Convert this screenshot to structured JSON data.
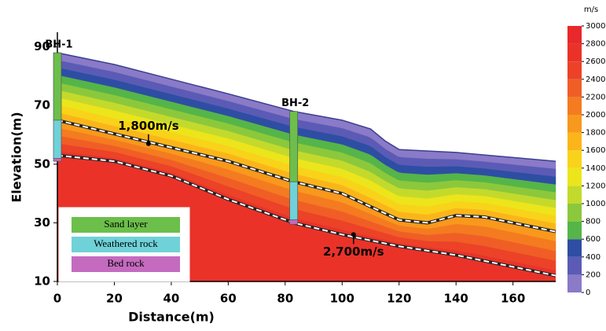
{
  "chart_data": {
    "type": "profile",
    "x_label": "Distance(m)",
    "y_label": "Elevation(m)",
    "xlim": [
      0,
      175
    ],
    "ylim": [
      10,
      95
    ],
    "xticks": [
      0,
      20,
      40,
      60,
      80,
      100,
      120,
      140,
      160
    ],
    "yticks": [
      10,
      30,
      50,
      70,
      90
    ],
    "surface": {
      "x": [
        0,
        20,
        40,
        60,
        83,
        100,
        110,
        115,
        120,
        140,
        175
      ],
      "y": [
        88,
        84,
        79,
        74,
        68,
        65,
        62,
        58,
        55,
        54,
        51
      ]
    },
    "interfaces": [
      {
        "velocity": 1800,
        "x": [
          0,
          30,
          60,
          83,
          100,
          120,
          130,
          140,
          150,
          175
        ],
        "y": [
          65,
          58,
          51,
          44,
          40,
          31,
          30,
          32.5,
          32,
          27
        ]
      },
      {
        "velocity": 2700,
        "x": [
          0,
          20,
          40,
          60,
          83,
          100,
          120,
          140,
          160,
          175
        ],
        "y": [
          53,
          51,
          46,
          38,
          30,
          26,
          22,
          19,
          15,
          12
        ]
      }
    ],
    "annotations": [
      {
        "text": "1,800m/s",
        "x": 32,
        "y": 57
      },
      {
        "text": "2,700m/s",
        "x": 104,
        "y": 26
      }
    ],
    "boreholes": [
      {
        "name": "BH-1",
        "x": 0,
        "depths": [
          88,
          65,
          52,
          51
        ]
      },
      {
        "name": "BH-2",
        "x": 83,
        "depths": [
          68,
          44,
          31,
          29.5
        ]
      }
    ],
    "legend": [
      {
        "name": "Sand layer",
        "color": "#6cbf4a"
      },
      {
        "name": "Weathered rock",
        "color": "#6fd2d8"
      },
      {
        "name": "Bed rock",
        "color": "#c46bbf"
      }
    ],
    "colorbar": {
      "title": "m/s",
      "ticks": [
        0,
        200,
        400,
        600,
        800,
        1000,
        1200,
        1400,
        1600,
        1800,
        2000,
        2200,
        2400,
        2600,
        2800,
        3000
      ],
      "colors": [
        "#8a7ac8",
        "#5b5bb6",
        "#2e4ea3",
        "#55b548",
        "#8cc83c",
        "#c3da2c",
        "#ece51b",
        "#f8d31a",
        "#fbb51a",
        "#f8981c",
        "#f47b20",
        "#f05e26",
        "#ec4228",
        "#ea3229",
        "#e8282a"
      ]
    }
  }
}
